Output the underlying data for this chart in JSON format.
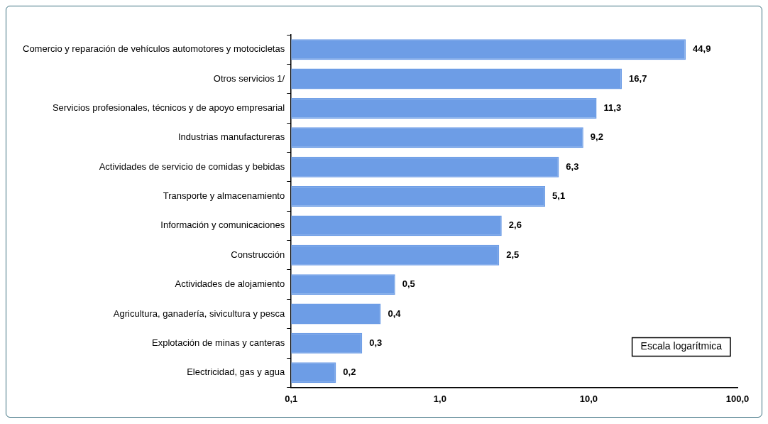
{
  "chart_data": {
    "type": "bar",
    "orientation": "horizontal",
    "log": "x",
    "categories": [
      "Comercio y reparación de vehículos automotores y motocicletas",
      "Otros servicios 1/",
      "Servicios profesionales, técnicos y de apoyo empresarial",
      "Industrias manufactureras",
      "Actividades de servicio de comidas y bebidas",
      "Transporte y almacenamiento",
      "Información y comunicaciones",
      "Construcción",
      "Actividades de alojamiento",
      "Agricultura, ganadería, sivicultura y pesca",
      "Explotación de minas y canteras",
      "Electricidad, gas y agua"
    ],
    "values": [
      44.9,
      16.7,
      11.3,
      9.2,
      6.3,
      5.1,
      2.6,
      2.5,
      0.5,
      0.4,
      0.3,
      0.2
    ],
    "value_labels": [
      "44,9",
      "16,7",
      "11,3",
      "9,2",
      "6,3",
      "5,1",
      "2,6",
      "2,5",
      "0,5",
      "0,4",
      "0,3",
      "0,2"
    ],
    "color": "#6d9de6",
    "xlim": [
      0.1,
      100
    ],
    "xticks": [
      {
        "value": 0.1,
        "label": "0,1"
      },
      {
        "value": 1,
        "label": "1,0"
      },
      {
        "value": 10,
        "label": "10,0"
      },
      {
        "value": 100,
        "label": "100,0"
      }
    ],
    "grid": false,
    "legend": false,
    "annotations": [
      "Escala logarítmica"
    ]
  }
}
